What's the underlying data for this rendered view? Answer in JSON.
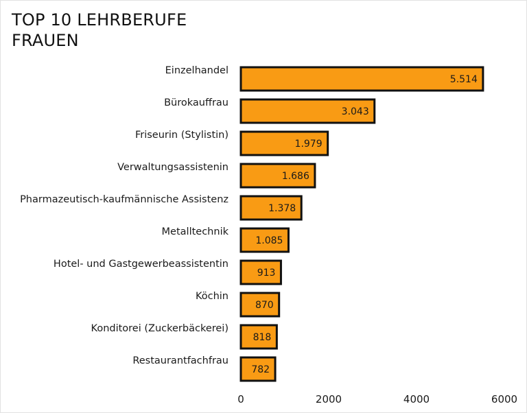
{
  "chart_data": {
    "type": "bar",
    "orientation": "horizontal",
    "title_lines": [
      "TOP 10 LEHRBERUFE",
      "FRAUEN"
    ],
    "categories": [
      "Einzelhandel",
      "Bürokauffrau",
      "Friseurin (Stylistin)",
      "Verwaltungsassistenin",
      "Pharmazeutisch-kaufmännische Assistenz",
      "Metalltechnik",
      "Hotel- und Gastgewerbeassistentin",
      "Köchin",
      "Konditorei (Zuckerbäckerei)",
      "Restaurantfachfrau"
    ],
    "values": [
      5514,
      3043,
      1979,
      1686,
      1378,
      1085,
      913,
      870,
      818,
      782
    ],
    "value_labels": [
      "5.514",
      "3.043",
      "1.979",
      "1.686",
      "1.378",
      "1.085",
      "913",
      "870",
      "818",
      "782"
    ],
    "xlim": [
      0,
      6000
    ],
    "xticks": [
      0,
      2000,
      4000,
      6000
    ],
    "xtick_labels": [
      "0",
      "2000",
      "4000",
      "6000"
    ],
    "bar_color": "#f99b14",
    "edge_color": "#111111",
    "grid": false
  }
}
